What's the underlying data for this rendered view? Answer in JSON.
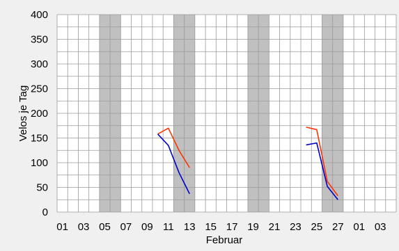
{
  "chart_data": {
    "type": "line",
    "title": "",
    "xlabel": "Februar",
    "ylabel": "Velos je Tag",
    "ylim": [
      0,
      400
    ],
    "yticks": [
      0,
      50,
      100,
      150,
      200,
      250,
      300,
      350,
      400
    ],
    "x_days": 32,
    "x_tick_labels": [
      "01",
      "03",
      "05",
      "07",
      "09",
      "11",
      "13",
      "15",
      "17",
      "19",
      "21",
      "23",
      "25",
      "27",
      "01",
      "03"
    ],
    "weekend_shaded_days": [
      5,
      6,
      12,
      13,
      19,
      20,
      26,
      27
    ],
    "grid": true,
    "series": [
      {
        "color": "#ff3300",
        "points": [
          [
            10,
            158
          ],
          [
            11,
            170
          ],
          [
            12,
            125
          ],
          [
            13,
            90
          ],
          [
            24,
            172
          ],
          [
            25,
            167
          ],
          [
            26,
            62
          ],
          [
            27,
            33
          ]
        ]
      },
      {
        "color": "#0000cc",
        "points": [
          [
            10,
            158
          ],
          [
            11,
            135
          ],
          [
            12,
            80
          ],
          [
            13,
            37
          ],
          [
            24,
            136
          ],
          [
            25,
            140
          ],
          [
            26,
            52
          ],
          [
            27,
            25
          ]
        ]
      }
    ]
  }
}
